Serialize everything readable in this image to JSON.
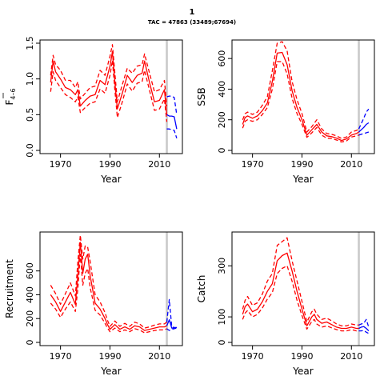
{
  "page": {
    "title": "1",
    "subtitle": "TAC = 47863 (33489;67694)"
  },
  "colors": {
    "estimate": "#ff0000",
    "forecast": "#0000ff",
    "ref_line": "#c8c8c8",
    "axis": "#000000"
  },
  "chart_data": [
    {
      "id": "f-panel",
      "type": "line",
      "xlabel": "Year",
      "ylabel_main": "F",
      "ylabel_sub": "4–6",
      "xlim": [
        1963,
        2018
      ],
      "ylim": [
        0,
        1.5
      ],
      "xticks": [
        1970,
        1990,
        2010
      ],
      "yticks": [
        0.0,
        0.5,
        1.0,
        1.5
      ],
      "ytick_labels": [
        "0.0",
        "0.5",
        "1.0",
        "1.5"
      ],
      "vline": 2013,
      "series": [
        {
          "role": "estimate",
          "style": "solid",
          "x": [
            1966,
            1967,
            1968,
            1970,
            1972,
            1974,
            1976,
            1977,
            1978,
            1980,
            1982,
            1984,
            1986,
            1988,
            1990,
            1991,
            1992,
            1993,
            1995,
            1997,
            1999,
            2001,
            2003,
            2004,
            2006,
            2008,
            2010,
            2012,
            2013
          ],
          "y": [
            0.95,
            1.25,
            1.1,
            1.0,
            0.88,
            0.85,
            0.78,
            0.85,
            0.62,
            0.7,
            0.76,
            0.78,
            0.98,
            0.92,
            1.18,
            1.38,
            0.95,
            0.58,
            0.8,
            1.05,
            0.95,
            1.05,
            1.08,
            1.25,
            0.95,
            0.68,
            0.7,
            0.85,
            0.5
          ]
        },
        {
          "role": "estimate",
          "style": "dashed",
          "x": [
            1966,
            1967,
            1968,
            1970,
            1972,
            1974,
            1976,
            1977,
            1978,
            1980,
            1982,
            1984,
            1986,
            1988,
            1990,
            1991,
            1992,
            1993,
            1995,
            1997,
            1999,
            2001,
            2003,
            2004,
            2006,
            2008,
            2010,
            2012,
            2013
          ],
          "y": [
            1.05,
            1.33,
            1.2,
            1.12,
            0.98,
            0.98,
            0.88,
            0.96,
            0.72,
            0.8,
            0.88,
            0.9,
            1.12,
            1.05,
            1.32,
            1.48,
            1.08,
            0.68,
            0.92,
            1.15,
            1.08,
            1.18,
            1.2,
            1.35,
            1.08,
            0.82,
            0.85,
            0.98,
            0.62
          ]
        },
        {
          "role": "estimate",
          "style": "dashed",
          "x": [
            1966,
            1967,
            1968,
            1970,
            1972,
            1974,
            1976,
            1977,
            1978,
            1980,
            1982,
            1984,
            1986,
            1988,
            1990,
            1991,
            1992,
            1993,
            1995,
            1997,
            1999,
            2001,
            2003,
            2004,
            2006,
            2008,
            2010,
            2012,
            2013
          ],
          "y": [
            0.82,
            1.1,
            0.98,
            0.88,
            0.78,
            0.74,
            0.68,
            0.75,
            0.53,
            0.6,
            0.66,
            0.68,
            0.86,
            0.8,
            1.05,
            1.26,
            0.84,
            0.46,
            0.68,
            0.93,
            0.83,
            0.94,
            0.96,
            1.12,
            0.84,
            0.56,
            0.58,
            0.72,
            0.4
          ]
        },
        {
          "role": "forecast",
          "style": "solid",
          "x": [
            2013,
            2014,
            2015,
            2016,
            2017
          ],
          "y": [
            0.5,
            0.48,
            0.48,
            0.47,
            0.3
          ]
        },
        {
          "role": "forecast",
          "style": "dashed",
          "x": [
            2013,
            2014,
            2015,
            2016,
            2017
          ],
          "y": [
            0.75,
            0.76,
            0.76,
            0.74,
            0.5
          ]
        },
        {
          "role": "forecast",
          "style": "dashed",
          "x": [
            2013,
            2014,
            2015,
            2016,
            2017
          ],
          "y": [
            0.3,
            0.3,
            0.29,
            0.28,
            0.17
          ]
        }
      ]
    },
    {
      "id": "ssb-panel",
      "type": "line",
      "xlabel": "Year",
      "ylabel_main": "SSB",
      "ylabel_sub": "",
      "xlim": [
        1963,
        2018
      ],
      "ylim": [
        0,
        700
      ],
      "xticks": [
        1970,
        1990,
        2010
      ],
      "yticks": [
        0,
        200,
        400,
        600
      ],
      "ytick_labels": [
        "0",
        "200",
        "400",
        "600"
      ],
      "vline": 2013,
      "series": [
        {
          "role": "estimate",
          "style": "solid",
          "x": [
            1966,
            1967,
            1968,
            1970,
            1972,
            1974,
            1976,
            1978,
            1980,
            1982,
            1984,
            1986,
            1988,
            1990,
            1992,
            1994,
            1996,
            1998,
            2000,
            2002,
            2004,
            2006,
            2008,
            2010,
            2012,
            2013
          ],
          "y": [
            170,
            215,
            225,
            210,
            225,
            260,
            310,
            450,
            635,
            640,
            560,
            390,
            280,
            200,
            100,
            135,
            170,
            120,
            95,
            90,
            80,
            65,
            75,
            100,
            110,
            120
          ]
        },
        {
          "role": "estimate",
          "style": "dashed",
          "x": [
            1966,
            1967,
            1968,
            1970,
            1972,
            1974,
            1976,
            1978,
            1980,
            1982,
            1984,
            1986,
            1988,
            1990,
            1992,
            1994,
            1996,
            1998,
            2000,
            2002,
            2004,
            2006,
            2008,
            2010,
            2012,
            2013
          ],
          "y": [
            200,
            240,
            250,
            235,
            250,
            295,
            350,
            520,
            700,
            710,
            650,
            450,
            330,
            240,
            120,
            155,
            200,
            140,
            110,
            105,
            95,
            78,
            88,
            120,
            130,
            140
          ]
        },
        {
          "role": "estimate",
          "style": "dashed",
          "x": [
            1966,
            1967,
            1968,
            1970,
            1972,
            1974,
            1976,
            1978,
            1980,
            1982,
            1984,
            1986,
            1988,
            1990,
            1992,
            1994,
            1996,
            1998,
            2000,
            2002,
            2004,
            2006,
            2008,
            2010,
            2012,
            2013
          ],
          "y": [
            145,
            190,
            200,
            190,
            200,
            235,
            280,
            400,
            580,
            580,
            500,
            340,
            240,
            170,
            85,
            115,
            150,
            100,
            80,
            78,
            68,
            55,
            62,
            88,
            95,
            100
          ]
        },
        {
          "role": "forecast",
          "style": "solid",
          "x": [
            2013,
            2014,
            2015,
            2016,
            2017
          ],
          "y": [
            120,
            135,
            150,
            170,
            180
          ]
        },
        {
          "role": "forecast",
          "style": "dashed",
          "x": [
            2013,
            2014,
            2015,
            2016,
            2017
          ],
          "y": [
            140,
            175,
            210,
            250,
            270
          ]
        },
        {
          "role": "forecast",
          "style": "dashed",
          "x": [
            2013,
            2014,
            2015,
            2016,
            2017
          ],
          "y": [
            100,
            105,
            110,
            115,
            120
          ]
        }
      ]
    },
    {
      "id": "recruitment-panel",
      "type": "line",
      "xlabel": "Year",
      "ylabel_main": "Recruitment",
      "ylabel_sub": "",
      "xlim": [
        1963,
        2018
      ],
      "ylim": [
        0,
        900
      ],
      "xticks": [
        1970,
        1990,
        2010
      ],
      "yticks": [
        0,
        200,
        400,
        600
      ],
      "ytick_labels": [
        "0",
        "200",
        "400",
        "600"
      ],
      "vline": 2013,
      "series": [
        {
          "role": "estimate",
          "style": "solid",
          "x": [
            1966,
            1968,
            1970,
            1972,
            1974,
            1976,
            1977,
            1978,
            1979,
            1980,
            1981,
            1982,
            1984,
            1986,
            1988,
            1989,
            1990,
            1992,
            1994,
            1996,
            1998,
            2000,
            2002,
            2004,
            2006,
            2008,
            2010,
            2012,
            2013
          ],
          "y": [
            400,
            340,
            260,
            340,
            420,
            320,
            560,
            840,
            580,
            700,
            740,
            560,
            330,
            280,
            200,
            150,
            110,
            150,
            110,
            130,
            110,
            140,
            130,
            100,
            110,
            120,
            130,
            130,
            140
          ]
        },
        {
          "role": "estimate",
          "style": "dashed",
          "x": [
            1966,
            1968,
            1970,
            1972,
            1974,
            1976,
            1977,
            1978,
            1979,
            1980,
            1981,
            1982,
            1984,
            1986,
            1988,
            1989,
            1990,
            1992,
            1994,
            1996,
            1998,
            2000,
            2002,
            2004,
            2006,
            2008,
            2010,
            2012,
            2013
          ],
          "y": [
            480,
            410,
            320,
            410,
            500,
            390,
            680,
            900,
            700,
            810,
            800,
            680,
            400,
            340,
            250,
            185,
            135,
            180,
            135,
            160,
            135,
            170,
            155,
            120,
            130,
            145,
            155,
            155,
            170
          ]
        },
        {
          "role": "estimate",
          "style": "dashed",
          "x": [
            1966,
            1968,
            1970,
            1972,
            1974,
            1976,
            1977,
            1978,
            1979,
            1980,
            1981,
            1982,
            1984,
            1986,
            1988,
            1989,
            1990,
            1992,
            1994,
            1996,
            1998,
            2000,
            2002,
            2004,
            2006,
            2008,
            2010,
            2012,
            2013
          ],
          "y": [
            330,
            280,
            210,
            280,
            340,
            260,
            450,
            740,
            480,
            580,
            620,
            460,
            270,
            230,
            160,
            120,
            90,
            120,
            90,
            105,
            90,
            115,
            105,
            80,
            90,
            100,
            105,
            105,
            115
          ]
        },
        {
          "role": "forecast",
          "style": "solid",
          "x": [
            2013,
            2014,
            2015,
            2016,
            2017
          ],
          "y": [
            140,
            190,
            120,
            120,
            125
          ]
        },
        {
          "role": "forecast",
          "style": "dashed",
          "x": [
            2013,
            2014,
            2015,
            2016,
            2017
          ],
          "y": [
            170,
            360,
            130,
            125,
            125
          ]
        },
        {
          "role": "forecast",
          "style": "dashed",
          "x": [
            2013,
            2014,
            2015,
            2016,
            2017
          ],
          "y": [
            115,
            100,
            110,
            115,
            120
          ]
        }
      ]
    },
    {
      "id": "catch-panel",
      "type": "line",
      "xlabel": "Year",
      "ylabel_main": "Catch",
      "ylabel_sub": "",
      "xlim": [
        1963,
        2018
      ],
      "ylim": [
        0,
        420
      ],
      "xticks": [
        1970,
        1990,
        2010
      ],
      "yticks": [
        0,
        100,
        300
      ],
      "ytick_labels": [
        "0",
        "100",
        "300"
      ],
      "vline": 2013,
      "series": [
        {
          "role": "estimate",
          "style": "solid",
          "x": [
            1966,
            1967,
            1968,
            1970,
            1972,
            1974,
            1976,
            1978,
            1980,
            1982,
            1984,
            1986,
            1988,
            1990,
            1992,
            1994,
            1995,
            1996,
            1998,
            2000,
            2002,
            2004,
            2006,
            2008,
            2010,
            2012,
            2013
          ],
          "y": [
            110,
            140,
            150,
            120,
            130,
            160,
            200,
            230,
            320,
            340,
            350,
            280,
            200,
            130,
            65,
            100,
            110,
            90,
            75,
            80,
            70,
            60,
            55,
            55,
            60,
            55,
            55
          ]
        },
        {
          "role": "estimate",
          "style": "dashed",
          "x": [
            1966,
            1967,
            1968,
            1970,
            1972,
            1974,
            1976,
            1978,
            1980,
            1982,
            1984,
            1986,
            1988,
            1990,
            1992,
            1994,
            1995,
            1996,
            1998,
            2000,
            2002,
            2004,
            2006,
            2008,
            2010,
            2012,
            2013
          ],
          "y": [
            130,
            165,
            180,
            145,
            155,
            190,
            240,
            270,
            380,
            395,
            410,
            320,
            240,
            160,
            80,
            120,
            130,
            110,
            90,
            95,
            85,
            72,
            65,
            65,
            72,
            68,
            68
          ]
        },
        {
          "role": "estimate",
          "style": "dashed",
          "x": [
            1966,
            1967,
            1968,
            1970,
            1972,
            1974,
            1976,
            1978,
            1980,
            1982,
            1984,
            1986,
            1988,
            1990,
            1992,
            1994,
            1995,
            1996,
            1998,
            2000,
            2002,
            2004,
            2006,
            2008,
            2010,
            2012,
            2013
          ],
          "y": [
            90,
            115,
            125,
            100,
            110,
            135,
            170,
            195,
            270,
            290,
            300,
            240,
            165,
            105,
            52,
            82,
            90,
            72,
            60,
            65,
            57,
            50,
            45,
            45,
            50,
            45,
            45
          ]
        },
        {
          "role": "forecast",
          "style": "solid",
          "x": [
            2013,
            2014,
            2015,
            2016,
            2017
          ],
          "y": [
            55,
            60,
            62,
            55,
            45
          ]
        },
        {
          "role": "forecast",
          "style": "dashed",
          "x": [
            2013,
            2014,
            2015,
            2016,
            2017
          ],
          "y": [
            68,
            72,
            75,
            90,
            60
          ]
        },
        {
          "role": "forecast",
          "style": "dashed",
          "x": [
            2013,
            2014,
            2015,
            2016,
            2017
          ],
          "y": [
            45,
            45,
            47,
            40,
            35
          ]
        }
      ]
    }
  ]
}
